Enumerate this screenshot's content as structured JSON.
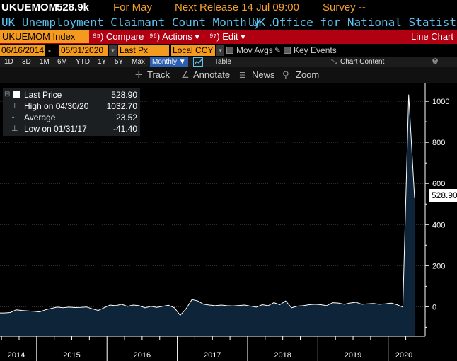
{
  "header": {
    "ticker": "UKUEMOM",
    "last_value": "528.9k",
    "for_period": "For May",
    "next_release": "Next Release 14 Jul 09:00",
    "survey": "Survey --"
  },
  "subheader": {
    "title": "UK Unemployment Claimant Count Monthly ...",
    "source": "UK Office for National Statistics"
  },
  "toolbar": {
    "index_label": "UKUEMOM Index",
    "compare_label": "⁹⁵) Compare",
    "actions_label": "⁹⁶) Actions ▾",
    "edit_label": "⁹⁷) Edit ▾",
    "chart_type": "Line Chart"
  },
  "options": {
    "start_date": "06/16/2014",
    "date_separator": "-",
    "end_date": "05/31/2020",
    "price_field": "Last Px",
    "currency": "Local CCY",
    "mov_avgs": "Mov Avgs",
    "key_events": "Key Events"
  },
  "periods": {
    "items": [
      "1D",
      "3D",
      "1M",
      "6M",
      "YTD",
      "1Y",
      "5Y",
      "Max"
    ],
    "frequency": "Monthly ▼",
    "table": "Table",
    "chart_content": "Chart Content"
  },
  "tools": {
    "track": "Track",
    "annotate": "Annotate",
    "news": "News",
    "zoom": "Zoom"
  },
  "legend": {
    "last_price_label": "Last Price",
    "last_price_value": "528.90",
    "high_label": "High on 04/30/20",
    "high_value": "1032.70",
    "average_label": "Average",
    "average_value": "23.52",
    "low_label": "Low on 01/31/17",
    "low_value": "-41.40"
  },
  "last_value_box": "528.90",
  "colors": {
    "orange": "#f49a1f",
    "red_bar": "#b00012",
    "cyan": "#5cc3f0",
    "area_fill": "#0e2438",
    "line": "#ffffff"
  },
  "chart_data": {
    "type": "area",
    "x_ticks": [
      "2014",
      "2015",
      "2016",
      "2017",
      "2018",
      "2019",
      "2020"
    ],
    "y_ticks": [
      "0",
      "200",
      "400",
      "600",
      "800",
      "1000"
    ],
    "ylim": [
      -140,
      1090
    ],
    "x": [
      "2014-06",
      "2014-07",
      "2014-08",
      "2014-09",
      "2014-10",
      "2014-11",
      "2014-12",
      "2015-01",
      "2015-02",
      "2015-03",
      "2015-04",
      "2015-05",
      "2015-06",
      "2015-07",
      "2015-08",
      "2015-09",
      "2015-10",
      "2015-11",
      "2015-12",
      "2016-01",
      "2016-02",
      "2016-03",
      "2016-04",
      "2016-05",
      "2016-06",
      "2016-07",
      "2016-08",
      "2016-09",
      "2016-10",
      "2016-11",
      "2016-12",
      "2017-01",
      "2017-02",
      "2017-03",
      "2017-04",
      "2017-05",
      "2017-06",
      "2017-07",
      "2017-08",
      "2017-09",
      "2017-10",
      "2017-11",
      "2017-12",
      "2018-01",
      "2018-02",
      "2018-03",
      "2018-04",
      "2018-05",
      "2018-06",
      "2018-07",
      "2018-08",
      "2018-09",
      "2018-10",
      "2018-11",
      "2018-12",
      "2019-01",
      "2019-02",
      "2019-03",
      "2019-04",
      "2019-05",
      "2019-06",
      "2019-07",
      "2019-08",
      "2019-09",
      "2019-10",
      "2019-11",
      "2019-12",
      "2020-01",
      "2020-02",
      "2020-03",
      "2020-04",
      "2020-05"
    ],
    "values": [
      -30,
      -30,
      -28,
      -15,
      -18,
      -20,
      -22,
      -25,
      -15,
      -8,
      -2,
      -5,
      -2,
      -4,
      -3,
      -1,
      -10,
      -18,
      -5,
      8,
      5,
      12,
      2,
      8,
      5,
      -5,
      2,
      -3,
      2,
      7,
      -5,
      -41,
      -10,
      35,
      28,
      12,
      8,
      5,
      8,
      5,
      4,
      6,
      8,
      3,
      -2,
      10,
      5,
      20,
      10,
      28,
      -5,
      3,
      5,
      10,
      12,
      10,
      5,
      20,
      18,
      12,
      18,
      22,
      12,
      14,
      16,
      12,
      14,
      18,
      10,
      -2,
      1032.7,
      528.9
    ]
  }
}
